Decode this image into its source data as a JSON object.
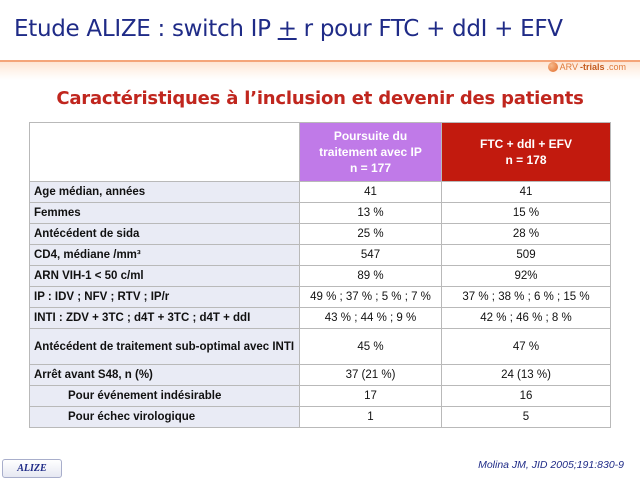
{
  "title": {
    "before": "Etude ALIZE : switch IP ",
    "underlined": "+",
    "after": " r pour FTC + ddI + EFV"
  },
  "logo": {
    "left": "ARV",
    "mid": "-trials",
    "right": ".com"
  },
  "section_title": "Caractéristiques à l’inclusion et devenir des patients",
  "table": {
    "columns": [
      {
        "line1": "Poursuite du",
        "line2": "traitement avec IP",
        "line3": "n = 177",
        "color": "#c07ae8"
      },
      {
        "line1": "FTC + ddI + EFV",
        "line2": "n = 178",
        "color": "#c21a0e"
      }
    ],
    "rows": [
      {
        "label": "Age médian, années",
        "a": "41",
        "b": "41"
      },
      {
        "label": "Femmes",
        "a": "13 %",
        "b": "15 %"
      },
      {
        "label": "Antécédent de sida",
        "a": "25 %",
        "b": "28 %"
      },
      {
        "label": "CD4, médiane /mm³",
        "a": "547",
        "b": "509"
      },
      {
        "label": "ARN VIH-1 < 50 c/ml",
        "a": "89 %",
        "b": "92%"
      },
      {
        "label": "IP : IDV ; NFV ; RTV ; IP/r",
        "a": "49 % ; 37 % ; 5 % ; 7 %",
        "b": "37 % ; 38 % ; 6 % ; 15 %"
      },
      {
        "label": "INTI : ZDV + 3TC ; d4T + 3TC ; d4T + ddI",
        "a": "43 % ; 44 % ; 9 %",
        "b": "42 % ; 46 % ; 8 %"
      },
      {
        "label": "Antécédent de traitement sub-optimal avec INTI",
        "a": "45 %",
        "b": "47 %"
      },
      {
        "label": "Arrêt avant S48, n (%)",
        "a": "37 (21 %)",
        "b": "24 (13 %)"
      },
      {
        "label": "Pour événement indésirable",
        "a": "17",
        "b": "16"
      },
      {
        "label": "Pour échec virologique",
        "a": "1",
        "b": "5"
      }
    ]
  },
  "badge": "ALIZE",
  "reference": "Molina JM, JID 2005;191:830-9"
}
